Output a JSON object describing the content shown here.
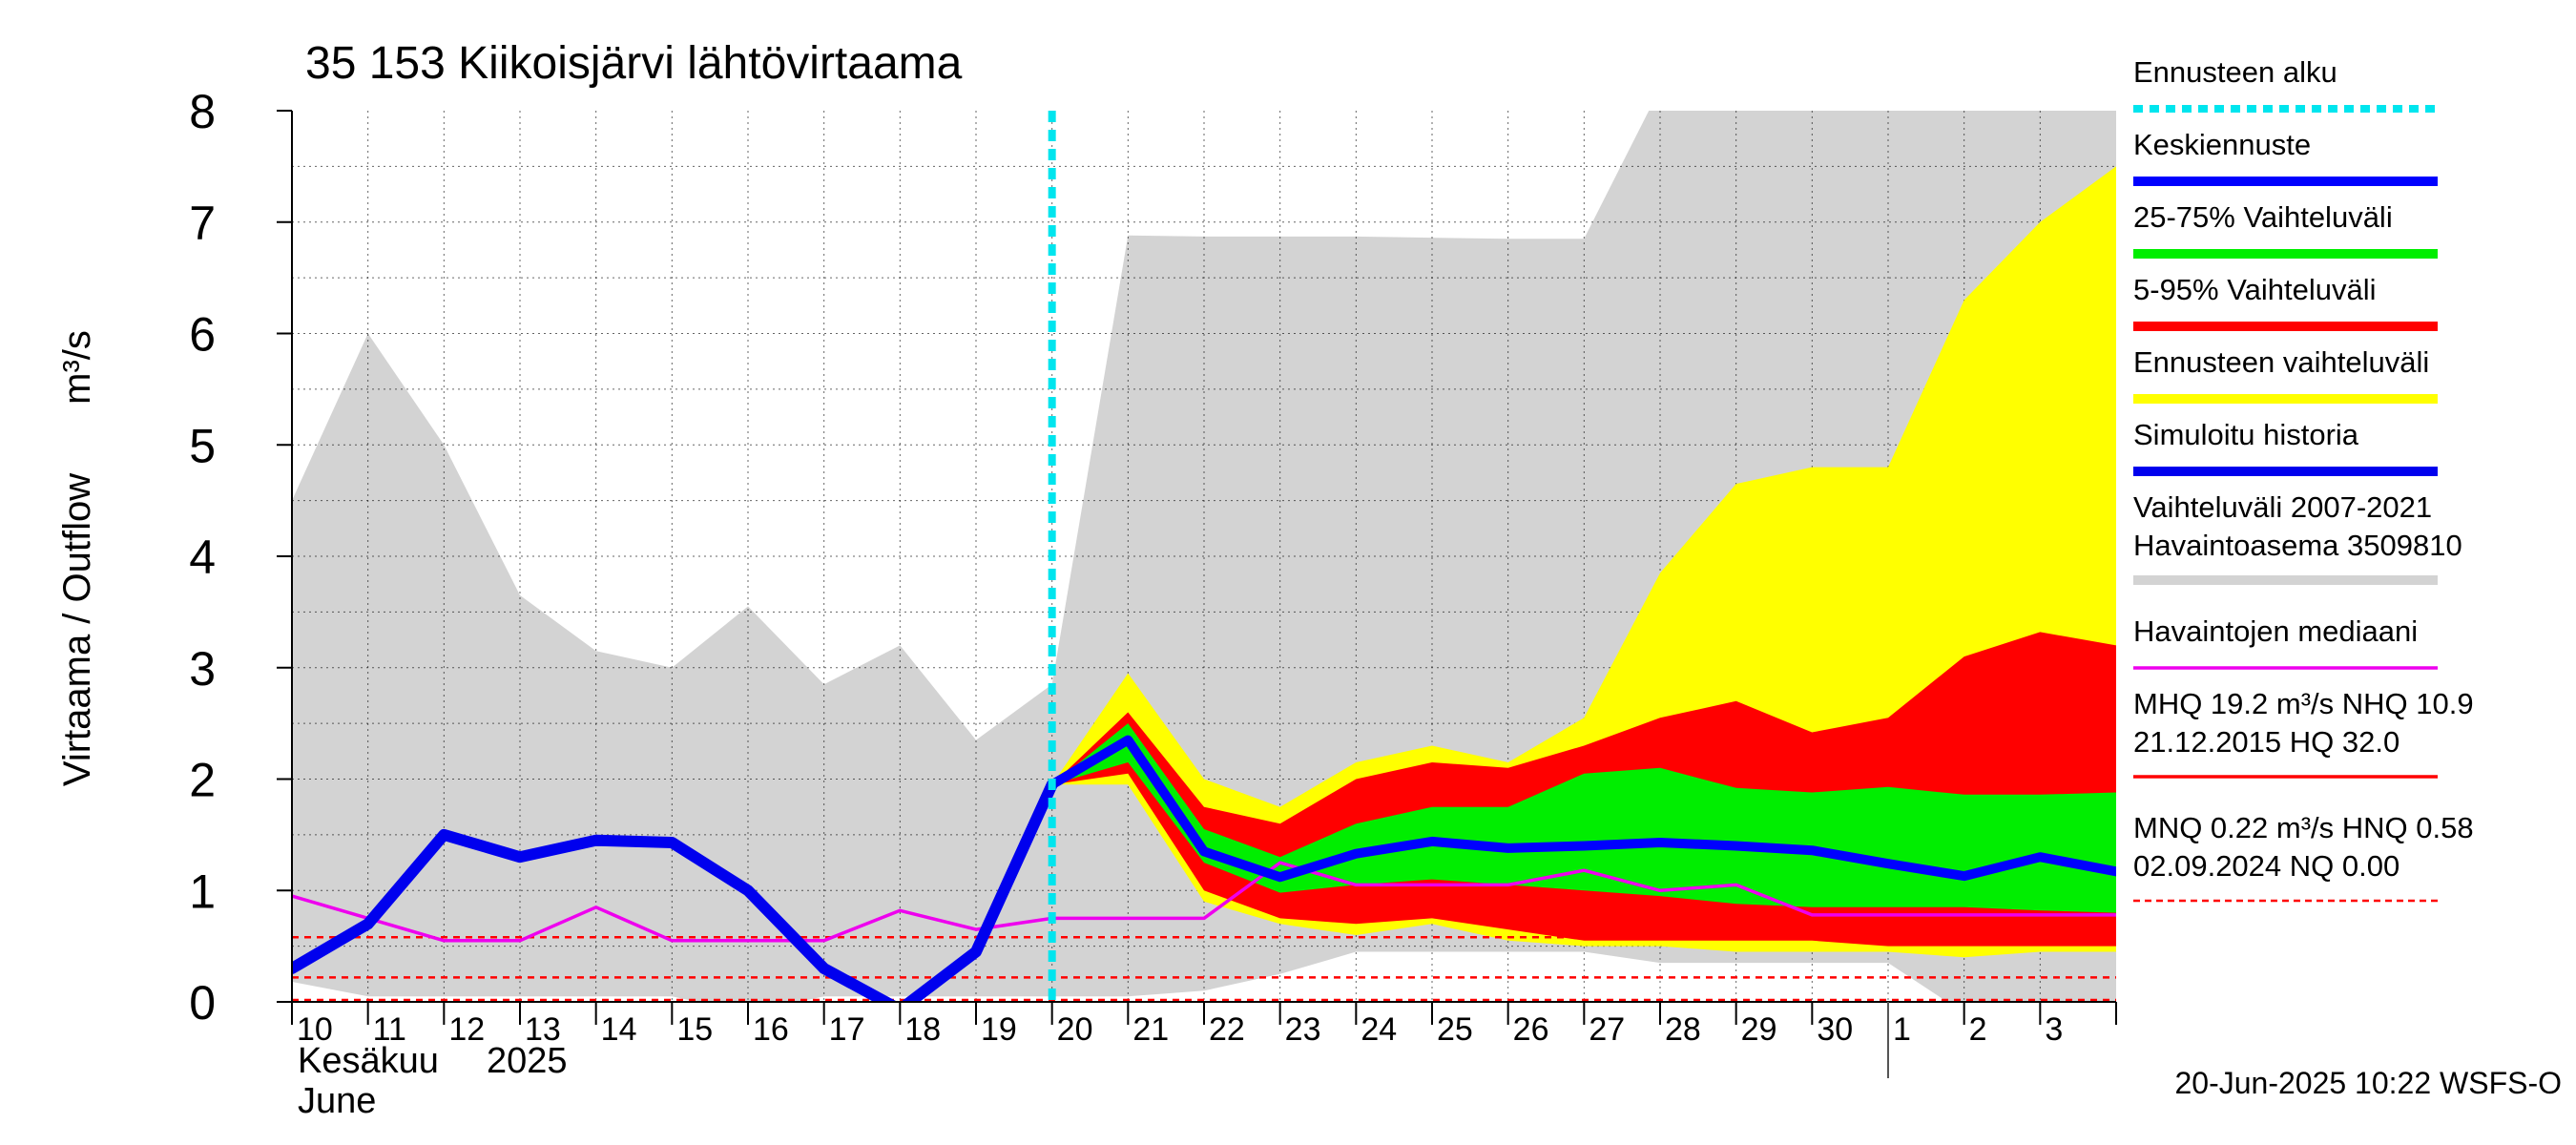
{
  "chart_data": {
    "type": "area",
    "title": "35 153 Kiikoisjärvi lähtövirtaama",
    "ylabel_left": "Virtaama / Outflow",
    "ylabel_unit": "m³/s",
    "ylim": [
      0,
      8
    ],
    "yticks": [
      "0",
      "1",
      "2",
      "3",
      "4",
      "5",
      "6",
      "7",
      "8"
    ],
    "xlim": [
      0,
      24
    ],
    "day_labels": [
      "10",
      "11",
      "12",
      "13",
      "14",
      "15",
      "16",
      "17",
      "18",
      "19",
      "20",
      "21",
      "22",
      "23",
      "24",
      "25",
      "26",
      "27",
      "28",
      "29",
      "30",
      "1",
      "2",
      "3"
    ],
    "month_label_fi": "Kesäkuu",
    "year_label": "2025",
    "month_label_en": "June",
    "forecast_start_x": 10,
    "footer": "20-Jun-2025 10:22 WSFS-O",
    "legend": [
      {
        "key": "forecast_start",
        "label": "Ennusteen alku",
        "color": "#00e5ee",
        "style": "dotted"
      },
      {
        "key": "median_forecast",
        "label": "Keskiennuste",
        "color": "#0000ff",
        "style": "thick"
      },
      {
        "key": "p25_75",
        "label": "25-75% Vaihteluväli",
        "color": "#00ee00",
        "style": "thick"
      },
      {
        "key": "p5_95",
        "label": "5-95% Vaihteluväli",
        "color": "#ff0000",
        "style": "thick"
      },
      {
        "key": "full_range",
        "label": "Ennusteen vaihteluväli",
        "color": "#ffff00",
        "style": "thick"
      },
      {
        "key": "sim_history",
        "label": "Simuloitu historia",
        "color": "#0000ee",
        "style": "thick"
      },
      {
        "key": "hist_range",
        "label": "Vaihteluväli 2007-2021",
        "label2": " Havaintoasema 3509810",
        "color": "#d3d3d3",
        "style": "thick"
      },
      {
        "key": "obs_median",
        "label": "Havaintojen mediaani",
        "color": "#ee00ee",
        "style": "thin"
      },
      {
        "key": "mhq",
        "label": "MHQ 19.2 m³/s NHQ 10.9",
        "label2": "21.12.2015 HQ 32.0",
        "color": "#ff0000",
        "style": "thin"
      },
      {
        "key": "mnq",
        "label": "MNQ 0.22 m³/s HNQ 0.58",
        "label2": "02.09.2024 NQ 0.00",
        "color": "#ff0000",
        "style": "dashed"
      }
    ],
    "series": {
      "hist_range_upper": {
        "x": [
          0,
          1,
          2,
          3,
          4,
          5,
          6,
          7,
          8,
          9,
          10,
          11,
          12,
          13,
          14,
          15,
          16,
          17,
          18,
          19,
          20,
          21,
          22,
          23,
          24
        ],
        "y": [
          4.5,
          6.0,
          5.0,
          3.65,
          3.15,
          3.0,
          3.55,
          2.85,
          3.2,
          2.35,
          2.85,
          6.88,
          6.87,
          6.87,
          6.87,
          6.86,
          6.85,
          6.85,
          8.2,
          8.2,
          8.2,
          8.2,
          8.2,
          8.2,
          8.2
        ]
      },
      "hist_range_lower": {
        "x": [
          0,
          1,
          2,
          3,
          4,
          5,
          6,
          7,
          8,
          9,
          10,
          11,
          12,
          13,
          14,
          15,
          16,
          17,
          18,
          19,
          20,
          21,
          22,
          23,
          24
        ],
        "y": [
          0.18,
          0.05,
          0.05,
          0.05,
          0.05,
          0.05,
          -0.1,
          0.05,
          0.05,
          0.05,
          0.05,
          0.05,
          0.1,
          0.25,
          0.45,
          0.45,
          0.45,
          0.45,
          0.35,
          0.35,
          0.35,
          0.35,
          -0.1,
          0.0,
          -0.05
        ]
      },
      "full_range_upper": {
        "x": [
          10,
          11,
          12,
          13,
          14,
          15,
          16,
          17,
          18,
          19,
          20,
          21,
          22,
          23,
          24
        ],
        "y": [
          1.95,
          2.95,
          2.0,
          1.75,
          2.15,
          2.3,
          2.15,
          2.55,
          3.85,
          4.65,
          4.8,
          4.8,
          6.3,
          7.0,
          7.5
        ]
      },
      "full_range_lower": {
        "x": [
          10,
          11,
          12,
          13,
          14,
          15,
          16,
          17,
          18,
          19,
          20,
          21,
          22,
          23,
          24
        ],
        "y": [
          1.95,
          1.95,
          0.9,
          0.7,
          0.6,
          0.7,
          0.55,
          0.5,
          0.5,
          0.45,
          0.45,
          0.45,
          0.4,
          0.45,
          0.45
        ]
      },
      "p5_95_upper": {
        "x": [
          10,
          11,
          12,
          13,
          14,
          15,
          16,
          17,
          18,
          19,
          20,
          21,
          22,
          23,
          24
        ],
        "y": [
          1.95,
          2.6,
          1.75,
          1.6,
          2.0,
          2.15,
          2.1,
          2.3,
          2.55,
          2.7,
          2.42,
          2.55,
          3.1,
          3.32,
          3.2
        ]
      },
      "p5_95_lower": {
        "x": [
          10,
          11,
          12,
          13,
          14,
          15,
          16,
          17,
          18,
          19,
          20,
          21,
          22,
          23,
          24
        ],
        "y": [
          1.95,
          2.05,
          1.0,
          0.75,
          0.7,
          0.75,
          0.65,
          0.55,
          0.55,
          0.55,
          0.55,
          0.5,
          0.5,
          0.5,
          0.5
        ]
      },
      "p25_75_upper": {
        "x": [
          10,
          11,
          12,
          13,
          14,
          15,
          16,
          17,
          18,
          19,
          20,
          21,
          22,
          23,
          24
        ],
        "y": [
          1.95,
          2.5,
          1.55,
          1.3,
          1.6,
          1.75,
          1.75,
          2.05,
          2.1,
          1.92,
          1.88,
          1.93,
          1.86,
          1.86,
          1.88
        ]
      },
      "p25_75_lower": {
        "x": [
          10,
          11,
          12,
          13,
          14,
          15,
          16,
          17,
          18,
          19,
          20,
          21,
          22,
          23,
          24
        ],
        "y": [
          1.95,
          2.15,
          1.25,
          0.98,
          1.05,
          1.1,
          1.05,
          1.0,
          0.95,
          0.88,
          0.85,
          0.85,
          0.85,
          0.82,
          0.8
        ]
      },
      "median_forecast": {
        "x": [
          10,
          11,
          12,
          13,
          14,
          15,
          16,
          17,
          18,
          19,
          20,
          21,
          22,
          23,
          24
        ],
        "y": [
          1.95,
          2.35,
          1.35,
          1.12,
          1.33,
          1.44,
          1.38,
          1.4,
          1.43,
          1.4,
          1.36,
          1.24,
          1.13,
          1.3,
          1.17
        ]
      },
      "sim_history": {
        "x": [
          0,
          1,
          2,
          3,
          4,
          5,
          6,
          7,
          8,
          9,
          10
        ],
        "y": [
          0.3,
          0.7,
          1.5,
          1.3,
          1.45,
          1.43,
          1.0,
          0.3,
          -0.07,
          0.45,
          1.95
        ]
      },
      "obs_median": {
        "x": [
          0,
          1,
          2,
          3,
          4,
          5,
          6,
          7,
          8,
          9,
          10,
          11,
          12,
          13,
          14,
          15,
          16,
          17,
          18,
          19,
          20,
          21,
          22,
          23,
          24
        ],
        "y": [
          0.95,
          0.75,
          0.55,
          0.55,
          0.85,
          0.55,
          0.55,
          0.55,
          0.82,
          0.65,
          0.75,
          0.75,
          0.75,
          1.25,
          1.05,
          1.05,
          1.05,
          1.18,
          1.0,
          1.05,
          0.78,
          0.78,
          0.78,
          0.78,
          0.78
        ]
      },
      "mnq_line": {
        "y": 0.22
      },
      "hnq_line": {
        "y": 0.58
      },
      "nq_line": {
        "y": 0.0
      }
    }
  }
}
